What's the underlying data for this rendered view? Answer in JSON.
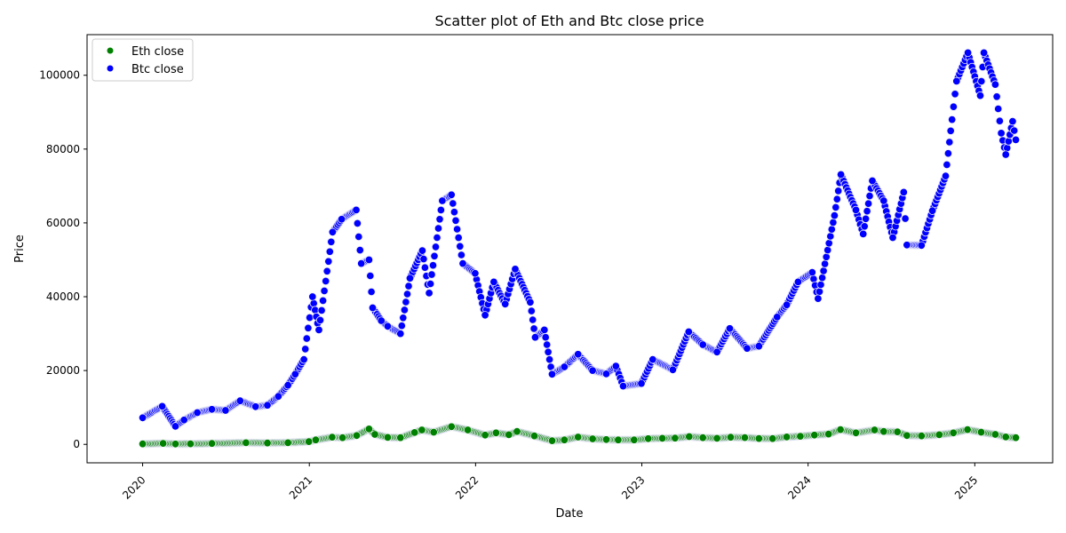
{
  "chart_data": {
    "type": "scatter",
    "title": "Scatter plot of Eth and Btc close price",
    "xlabel": "Date",
    "ylabel": "Price",
    "xlim": [
      "2019-09-01",
      "2025-06-21"
    ],
    "ylim": [
      -5000,
      111000
    ],
    "x_ticks": [
      "2020",
      "2021",
      "2022",
      "2023",
      "2024",
      "2025"
    ],
    "y_ticks": [
      0,
      20000,
      40000,
      60000,
      80000,
      100000
    ],
    "grid": false,
    "legend_position": "top-left",
    "series": [
      {
        "name": "Eth close",
        "color": "#008000",
        "points": [
          [
            "2020-01-01",
            130
          ],
          [
            "2020-02-15",
            270
          ],
          [
            "2020-03-13",
            110
          ],
          [
            "2020-04-15",
            160
          ],
          [
            "2020-06-01",
            240
          ],
          [
            "2020-08-15",
            430
          ],
          [
            "2020-10-01",
            355
          ],
          [
            "2020-11-15",
            450
          ],
          [
            "2020-12-31",
            740
          ],
          [
            "2021-01-15",
            1200
          ],
          [
            "2021-02-20",
            1950
          ],
          [
            "2021-03-15",
            1800
          ],
          [
            "2021-04-15",
            2400
          ],
          [
            "2021-05-12",
            4170
          ],
          [
            "2021-05-25",
            2700
          ],
          [
            "2021-06-22",
            1880
          ],
          [
            "2021-07-20",
            1800
          ],
          [
            "2021-08-20",
            3200
          ],
          [
            "2021-09-05",
            3900
          ],
          [
            "2021-10-01",
            3300
          ],
          [
            "2021-11-09",
            4800
          ],
          [
            "2021-12-15",
            3900
          ],
          [
            "2022-01-22",
            2500
          ],
          [
            "2022-02-15",
            3100
          ],
          [
            "2022-03-15",
            2600
          ],
          [
            "2022-04-02",
            3500
          ],
          [
            "2022-05-10",
            2300
          ],
          [
            "2022-06-18",
            1000
          ],
          [
            "2022-07-15",
            1200
          ],
          [
            "2022-08-14",
            1980
          ],
          [
            "2022-09-15",
            1500
          ],
          [
            "2022-10-15",
            1300
          ],
          [
            "2022-11-10",
            1200
          ],
          [
            "2022-12-15",
            1200
          ],
          [
            "2023-01-15",
            1550
          ],
          [
            "2023-02-15",
            1650
          ],
          [
            "2023-03-15",
            1700
          ],
          [
            "2023-04-15",
            2100
          ],
          [
            "2023-05-15",
            1820
          ],
          [
            "2023-06-15",
            1650
          ],
          [
            "2023-07-15",
            1930
          ],
          [
            "2023-08-15",
            1830
          ],
          [
            "2023-09-15",
            1600
          ],
          [
            "2023-10-15",
            1560
          ],
          [
            "2023-11-15",
            2000
          ],
          [
            "2023-12-15",
            2200
          ],
          [
            "2024-01-15",
            2500
          ],
          [
            "2024-02-15",
            2800
          ],
          [
            "2024-03-12",
            4000
          ],
          [
            "2024-04-15",
            3100
          ],
          [
            "2024-05-26",
            3900
          ],
          [
            "2024-06-15",
            3500
          ],
          [
            "2024-07-15",
            3400
          ],
          [
            "2024-08-05",
            2400
          ],
          [
            "2024-09-06",
            2300
          ],
          [
            "2024-10-15",
            2600
          ],
          [
            "2024-11-15",
            3100
          ],
          [
            "2024-12-16",
            4000
          ],
          [
            "2025-01-15",
            3300
          ],
          [
            "2025-02-15",
            2700
          ],
          [
            "2025-03-10",
            2000
          ],
          [
            "2025-04-01",
            1800
          ]
        ]
      },
      {
        "name": "Btc close",
        "color": "#0000ff",
        "points": [
          [
            "2020-01-01",
            7200
          ],
          [
            "2020-02-13",
            10300
          ],
          [
            "2020-03-13",
            4900
          ],
          [
            "2020-04-01",
            6600
          ],
          [
            "2020-04-30",
            8600
          ],
          [
            "2020-06-01",
            9500
          ],
          [
            "2020-07-01",
            9200
          ],
          [
            "2020-08-02",
            11800
          ],
          [
            "2020-09-05",
            10200
          ],
          [
            "2020-10-01",
            10600
          ],
          [
            "2020-10-25",
            13000
          ],
          [
            "2020-11-15",
            16000
          ],
          [
            "2020-12-01",
            19000
          ],
          [
            "2020-12-20",
            23000
          ],
          [
            "2021-01-08",
            40000
          ],
          [
            "2021-01-22",
            31000
          ],
          [
            "2021-02-21",
            57500
          ],
          [
            "2021-03-13",
            61000
          ],
          [
            "2021-04-14",
            63500
          ],
          [
            "2021-04-25",
            49000
          ],
          [
            "2021-05-12",
            50000
          ],
          [
            "2021-05-20",
            37000
          ],
          [
            "2021-06-08",
            33500
          ],
          [
            "2021-06-22",
            32000
          ],
          [
            "2021-07-20",
            30000
          ],
          [
            "2021-08-10",
            45000
          ],
          [
            "2021-09-06",
            52500
          ],
          [
            "2021-09-21",
            41000
          ],
          [
            "2021-10-20",
            66000
          ],
          [
            "2021-11-09",
            67600
          ],
          [
            "2021-12-04",
            49000
          ],
          [
            "2021-12-31",
            46300
          ],
          [
            "2022-01-22",
            35000
          ],
          [
            "2022-02-10",
            44000
          ],
          [
            "2022-03-07",
            38000
          ],
          [
            "2022-03-29",
            47500
          ],
          [
            "2022-05-01",
            38500
          ],
          [
            "2022-05-12",
            29000
          ],
          [
            "2022-06-01",
            31000
          ],
          [
            "2022-06-18",
            19000
          ],
          [
            "2022-07-15",
            21000
          ],
          [
            "2022-08-14",
            24400
          ],
          [
            "2022-09-15",
            20000
          ],
          [
            "2022-10-15",
            19100
          ],
          [
            "2022-11-05",
            21200
          ],
          [
            "2022-11-21",
            15800
          ],
          [
            "2022-12-31",
            16500
          ],
          [
            "2023-01-25",
            23000
          ],
          [
            "2023-03-10",
            20200
          ],
          [
            "2023-04-14",
            30500
          ],
          [
            "2023-05-15",
            27000
          ],
          [
            "2023-06-15",
            25000
          ],
          [
            "2023-07-13",
            31400
          ],
          [
            "2023-08-20",
            26000
          ],
          [
            "2023-09-15",
            26600
          ],
          [
            "2023-10-25",
            34500
          ],
          [
            "2023-11-15",
            37800
          ],
          [
            "2023-12-10",
            44000
          ],
          [
            "2024-01-10",
            46600
          ],
          [
            "2024-01-23",
            39500
          ],
          [
            "2024-02-28",
            62000
          ],
          [
            "2024-03-13",
            73100
          ],
          [
            "2024-04-15",
            63500
          ],
          [
            "2024-05-01",
            57000
          ],
          [
            "2024-05-21",
            71400
          ],
          [
            "2024-06-15",
            66000
          ],
          [
            "2024-07-05",
            56000
          ],
          [
            "2024-07-29",
            68300
          ],
          [
            "2024-08-05",
            54000
          ],
          [
            "2024-09-06",
            53900
          ],
          [
            "2024-09-30",
            63300
          ],
          [
            "2024-10-29",
            72700
          ],
          [
            "2024-11-12",
            88000
          ],
          [
            "2024-11-22",
            98400
          ],
          [
            "2024-12-17",
            106100
          ],
          [
            "2025-01-13",
            94500
          ],
          [
            "2025-01-21",
            106100
          ],
          [
            "2025-02-15",
            97500
          ],
          [
            "2025-02-28",
            84300
          ],
          [
            "2025-03-10",
            78500
          ],
          [
            "2025-03-25",
            87500
          ],
          [
            "2025-04-01",
            82500
          ]
        ]
      }
    ]
  }
}
